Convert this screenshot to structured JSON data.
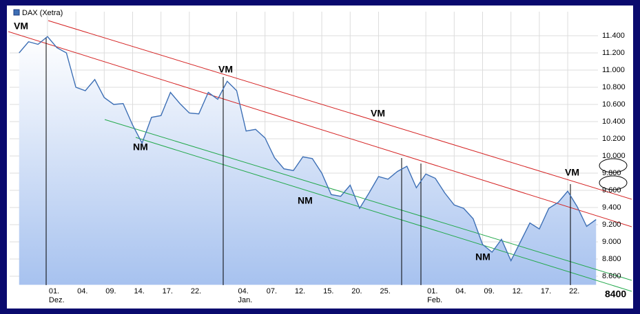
{
  "chart_data": {
    "type": "line",
    "legend": "DAX (Xetra)",
    "series": [
      {
        "name": "DAX (Xetra)",
        "color": "#3d6fb5",
        "values": [
          11200,
          11330,
          11300,
          11390,
          11260,
          11200,
          10800,
          10760,
          10890,
          10680,
          10600,
          10610,
          10360,
          10150,
          10450,
          10470,
          10740,
          10610,
          10500,
          10490,
          10740,
          10660,
          10870,
          10760,
          10290,
          10310,
          10210,
          9980,
          9850,
          9830,
          9990,
          9970,
          9800,
          9550,
          9530,
          9660,
          9390,
          9570,
          9760,
          9730,
          9820,
          9880,
          9630,
          9790,
          9740,
          9570,
          9430,
          9390,
          9270,
          8970,
          8880,
          9030,
          8780,
          9000,
          9220,
          9150,
          9390,
          9460,
          9590,
          9410,
          9180,
          9260
        ]
      }
    ],
    "xlim": [
      -1,
      61.2
    ],
    "xticks": [
      {
        "value": 3,
        "label": "01."
      },
      {
        "value": 6,
        "label": "04."
      },
      {
        "value": 9,
        "label": "09."
      },
      {
        "value": 12,
        "label": "14."
      },
      {
        "value": 15,
        "label": "17."
      },
      {
        "value": 18,
        "label": "22."
      },
      {
        "value": 23,
        "label": "04."
      },
      {
        "value": 26,
        "label": "07."
      },
      {
        "value": 29,
        "label": "12."
      },
      {
        "value": 32,
        "label": "15."
      },
      {
        "value": 35,
        "label": "20."
      },
      {
        "value": 38,
        "label": "25."
      },
      {
        "value": 43,
        "label": "01."
      },
      {
        "value": 46,
        "label": "04."
      },
      {
        "value": 49,
        "label": "09."
      },
      {
        "value": 52,
        "label": "12."
      },
      {
        "value": 55,
        "label": "17."
      },
      {
        "value": 58,
        "label": "22."
      }
    ],
    "month_labels": [
      "Dez.",
      "Jan.",
      "Feb."
    ],
    "ylim": [
      8500,
      11680
    ],
    "yticks": [
      {
        "value": 8600,
        "label": "8.600"
      },
      {
        "value": 8800,
        "label": "8.800"
      },
      {
        "value": 9000,
        "label": "9.000"
      },
      {
        "value": 9200,
        "label": "9.200"
      },
      {
        "value": 9400,
        "label": "9.400"
      },
      {
        "value": 9600,
        "label": "9.600"
      },
      {
        "value": 9800,
        "label": "9.800"
      },
      {
        "value": 10000,
        "label": "10.000"
      },
      {
        "value": 10200,
        "label": "10.200"
      },
      {
        "value": 10400,
        "label": "10.400"
      },
      {
        "value": 10600,
        "label": "10.600"
      },
      {
        "value": 10800,
        "label": "10.800"
      },
      {
        "value": 11000,
        "label": "11.000"
      },
      {
        "value": 11200,
        "label": "11.200"
      },
      {
        "value": 11400,
        "label": "11.400"
      }
    ],
    "grid": true,
    "annotations": [
      "VM",
      "VM",
      "NM",
      "VM",
      "NM",
      "NM",
      "VM",
      "8400"
    ]
  }
}
